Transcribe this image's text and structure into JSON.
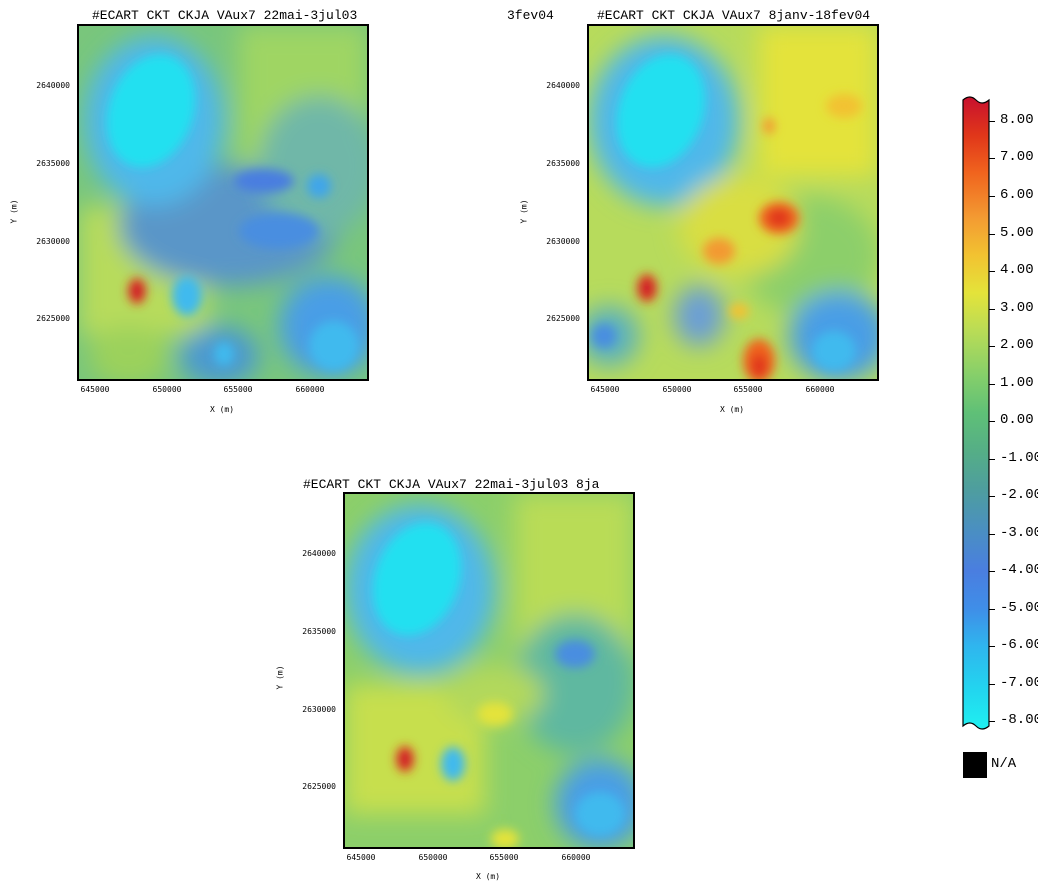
{
  "maps": [
    {
      "title": "#ECART CKT CKJA VAux7 22mai-3jul03",
      "xlabel": "X (m)",
      "ylabel": "Y (m)",
      "yticks": [
        "2640000",
        "2635000",
        "2630000",
        "2625000"
      ],
      "xticks": [
        "645000",
        "650000",
        "655000",
        "660000"
      ]
    },
    {
      "title": "#ECART CKT CKJA VAux7 8janv-18fev04",
      "title_overflow": "3fev04",
      "xlabel": "X (m)",
      "ylabel": "Y (m)",
      "yticks": [
        "2640000",
        "2635000",
        "2630000",
        "2625000"
      ],
      "xticks": [
        "645000",
        "650000",
        "655000",
        "660000"
      ]
    },
    {
      "title": "#ECART CKT CKJA VAux7 22mai-3jul03 8ja",
      "xlabel": "X (m)",
      "ylabel": "Y (m)",
      "yticks": [
        "2640000",
        "2635000",
        "2630000",
        "2625000"
      ],
      "xticks": [
        "645000",
        "650000",
        "655000",
        "660000"
      ]
    }
  ],
  "legend": {
    "labels": [
      "8.00",
      "7.00",
      "6.00",
      "5.00",
      "4.00",
      "3.00",
      "2.00",
      "1.00",
      "0.00",
      "-1.00",
      "-2.00",
      "-3.00",
      "-4.00",
      "-5.00",
      "-6.00",
      "-7.00",
      "-8.00"
    ],
    "na_label": "N/A",
    "colors": [
      "#c8102e",
      "#e0361a",
      "#f0641e",
      "#f39a32",
      "#f2c231",
      "#e4e33a",
      "#b9dc56",
      "#86cf6a",
      "#5fc077",
      "#55ae86",
      "#4e9e9e",
      "#4a8ec4",
      "#4a7ee0",
      "#3f8ee8",
      "#2fb6ee",
      "#22d6ef",
      "#1ff0f0"
    ]
  }
}
